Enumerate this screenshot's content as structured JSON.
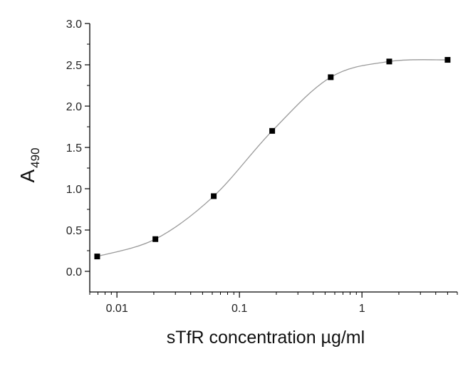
{
  "chart_data": {
    "type": "scatter",
    "title": "",
    "xlabel": "sTfR concentration µg/ml",
    "ylabel_main": "A",
    "ylabel_sub": "490",
    "x_scale": "log",
    "xlim": [
      0.006,
      6
    ],
    "ylim": [
      -0.25,
      3.0
    ],
    "x_ticks": [
      0.01,
      0.1,
      1
    ],
    "x_tick_labels": [
      "0.01",
      "0.1",
      "1"
    ],
    "y_ticks": [
      0.0,
      0.5,
      1.0,
      1.5,
      2.0,
      2.5,
      3.0
    ],
    "y_tick_labels": [
      "0.0",
      "0.5",
      "1.0",
      "1.5",
      "2.0",
      "2.5",
      "3.0"
    ],
    "grid": false,
    "legend": "none",
    "series": [
      {
        "x": [
          0.0069,
          0.0206,
          0.0617,
          0.185,
          0.556,
          1.67,
          5.0
        ],
        "y": [
          0.18,
          0.39,
          0.91,
          1.7,
          2.35,
          2.54,
          2.56
        ],
        "marker": "square",
        "line": "smooth",
        "line_color": "#9a9a9a",
        "marker_color": "#000000"
      }
    ]
  }
}
